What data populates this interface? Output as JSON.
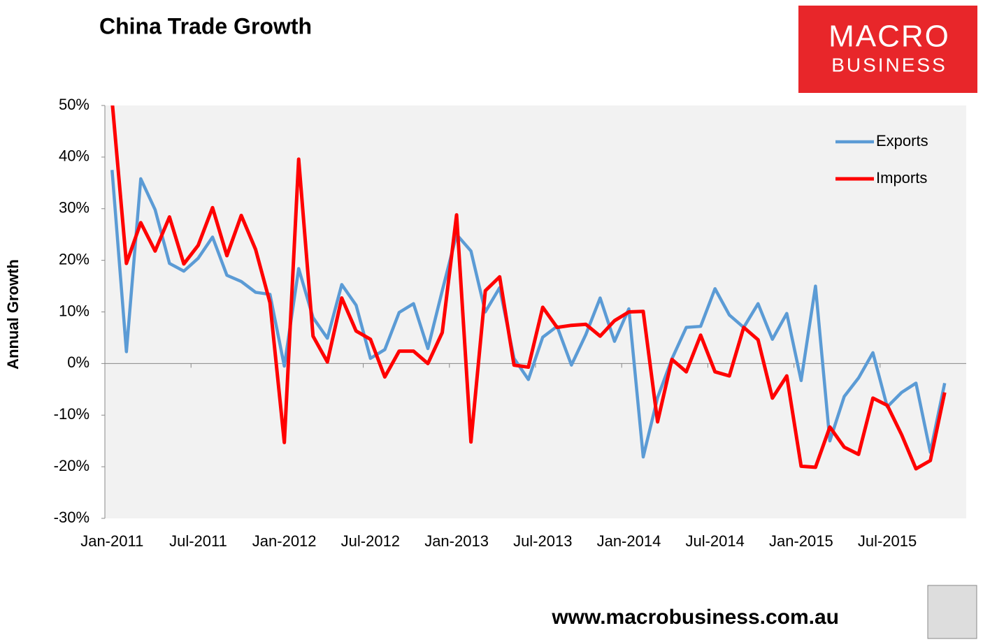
{
  "chart_data": {
    "type": "line",
    "title": "China Trade Growth",
    "y_label": "Annual Growth",
    "logo": {
      "line1": "MACRO",
      "line2": "BUSINESS"
    },
    "footer": "www.macrobusiness.com.au",
    "categories": [
      "Jan-2011",
      null,
      null,
      null,
      null,
      null,
      "Jul-2011",
      null,
      null,
      null,
      null,
      null,
      "Jan-2012",
      null,
      null,
      null,
      null,
      null,
      "Jul-2012",
      null,
      null,
      null,
      null,
      null,
      "Jan-2013",
      null,
      null,
      null,
      null,
      null,
      "Jul-2013",
      null,
      null,
      null,
      null,
      null,
      "Jan-2014",
      null,
      null,
      null,
      null,
      null,
      "Jul-2014",
      null,
      null,
      null,
      null,
      null,
      "Jan-2015",
      null,
      null,
      null,
      null,
      null,
      "Jul-2015",
      null,
      null,
      null,
      null,
      null
    ],
    "series": [
      {
        "name": "Exports",
        "color": "#5b9bd5",
        "values": [
          37.5,
          2.3,
          35.8,
          29.8,
          19.4,
          17.9,
          20.4,
          24.5,
          17.1,
          15.9,
          13.8,
          13.4,
          -0.5,
          18.4,
          8.9,
          4.9,
          15.3,
          11.3,
          1.0,
          2.7,
          9.9,
          11.6,
          2.9,
          14.1,
          25.0,
          21.8,
          10.0,
          14.7,
          1.0,
          -3.1,
          5.1,
          7.2,
          -0.3,
          5.6,
          12.7,
          4.3,
          10.6,
          -18.1,
          -6.6,
          0.9,
          7.0,
          7.2,
          14.5,
          9.4,
          7.0,
          11.6,
          4.7,
          9.7,
          -3.3,
          15.0,
          -15.0,
          -6.4,
          -2.8,
          2.1,
          -8.4,
          -5.6,
          -3.8,
          -17.2,
          -3.8,
          null
        ]
      },
      {
        "name": "Imports",
        "color": "#ff0000",
        "values": [
          51,
          19.4,
          27.3,
          21.8,
          28.4,
          19.3,
          22.9,
          30.2,
          20.9,
          28.7,
          22.1,
          11.8,
          -15.3,
          39.6,
          5.3,
          0.3,
          12.7,
          6.3,
          4.7,
          -2.6,
          2.4,
          2.4,
          0.0,
          6.0,
          28.8,
          -15.2,
          14.1,
          16.8,
          -0.3,
          -0.7,
          10.9,
          7.0,
          7.4,
          7.6,
          5.3,
          8.3,
          10.0,
          10.1,
          -11.3,
          0.8,
          -1.6,
          5.5,
          -1.6,
          -2.4,
          7.0,
          4.6,
          -6.7,
          -2.4,
          -19.9,
          -20.1,
          -12.3,
          -16.2,
          -17.6,
          -6.7,
          -8.1,
          -13.8,
          -20.4,
          -18.8,
          -5.6,
          null
        ]
      }
    ],
    "ylim": [
      -30,
      50
    ],
    "yticks": [
      {
        "value": -30,
        "label": "-30%"
      },
      {
        "value": -20,
        "label": "-20%"
      },
      {
        "value": -10,
        "label": "-10%"
      },
      {
        "value": 0,
        "label": "0%"
      },
      {
        "value": 10,
        "label": "10%"
      },
      {
        "value": 20,
        "label": "20%"
      },
      {
        "value": 30,
        "label": "30%"
      },
      {
        "value": 40,
        "label": "40%"
      },
      {
        "value": 50,
        "label": "50%"
      }
    ],
    "legend": "top-right",
    "grid": false
  }
}
